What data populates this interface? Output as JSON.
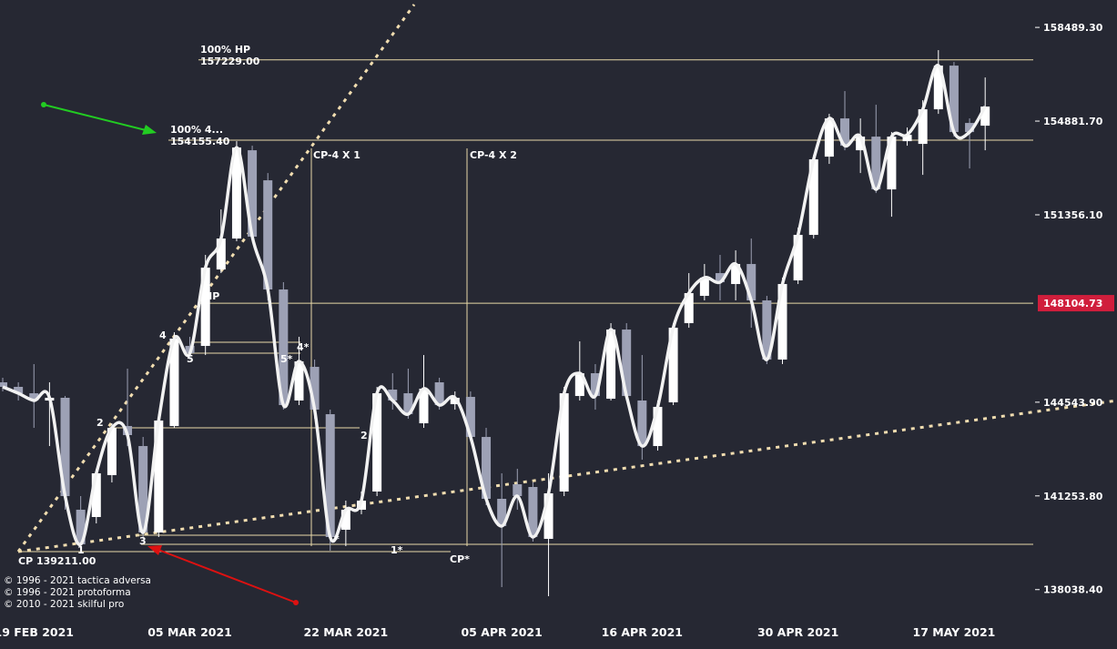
{
  "chart_data": {
    "type": "candlestick",
    "log_scale": true,
    "ylim": [
      136740,
      159560
    ],
    "yticks": [
      {
        "value": 158489.3,
        "label": "158489.30"
      },
      {
        "value": 154881.7,
        "label": "154881.70"
      },
      {
        "value": 151356.1,
        "label": "151356.10"
      },
      {
        "value": 144543.9,
        "label": "144543.90"
      },
      {
        "value": 141253.8,
        "label": "141253.80"
      },
      {
        "value": 138038.4,
        "label": "138038.40"
      }
    ],
    "up_color": "#ffffff",
    "down_color": "#9da1b5",
    "line_color": "#f2f2f2",
    "current_price": 148104.73,
    "current_price_color": "#d01e3c",
    "level_color": "#e8d9a8",
    "levels": [
      {
        "title": "100% HP",
        "value": 157229,
        "label": "157229.00"
      },
      {
        "title": "100%  4...",
        "value": 154155.4,
        "label": "154155.40"
      }
    ],
    "categories": [
      null,
      null,
      "19 FEB 2021",
      null,
      null,
      null,
      null,
      null,
      null,
      null,
      null,
      null,
      "05 MAR 2021",
      null,
      null,
      null,
      null,
      null,
      null,
      null,
      null,
      null,
      "22 MAR 2021",
      null,
      null,
      null,
      null,
      null,
      null,
      null,
      null,
      null,
      "05 APR 2021",
      null,
      null,
      null,
      null,
      null,
      null,
      null,
      null,
      "16 APR 2021",
      null,
      null,
      null,
      null,
      null,
      null,
      null,
      null,
      null,
      "30 APR 2021",
      null,
      null,
      null,
      null,
      null,
      null,
      null,
      null,
      null,
      "17 MAY 2021",
      null,
      null
    ],
    "open": [
      145252,
      145090,
      144862,
      144604,
      144701,
      140775,
      140523,
      141976,
      143700,
      142995,
      139990,
      143700,
      146557,
      146557,
      149336,
      150476,
      153776,
      152645,
      148604,
      144604,
      145805,
      144119,
      140084,
      140775,
      141406,
      144992,
      144862,
      143797,
      145252,
      144474,
      144733,
      143315,
      141153,
      141659,
      141564,
      139771,
      141406,
      144765,
      145577,
      144668,
      147148,
      144604,
      142995,
      144539,
      147379,
      148371,
      149203,
      148803,
      149537,
      148205,
      146066,
      148936,
      150611,
      153535,
      154984,
      153776,
      154292,
      152304,
      154120,
      154017,
      155332,
      157008,
      154811,
      154707
    ],
    "close": [
      145090,
      144862,
      144604,
      144701,
      141248,
      139584,
      142040,
      143636,
      143380,
      139990,
      143894,
      146819,
      146295,
      149403,
      150476,
      153879,
      150544,
      148604,
      144442,
      146001,
      144280,
      139833,
      140775,
      141090,
      144862,
      144604,
      144119,
      145025,
      144442,
      144701,
      143315,
      141153,
      140209,
      141248,
      139833,
      141343,
      144862,
      145577,
      144765,
      147148,
      144765,
      142995,
      144377,
      147214,
      148471,
      149036,
      148869,
      149537,
      148205,
      146066,
      148803,
      150611,
      153433,
      154984,
      153948,
      154292,
      152304,
      154292,
      154361,
      155332,
      157008,
      154465,
      154465,
      155436
    ],
    "high": [
      145415,
      145252,
      145903,
      145252,
      144765,
      141248,
      142198,
      143797,
      145740,
      143315,
      144119,
      147049,
      146885,
      149872,
      151557,
      154120,
      153948,
      152918,
      148869,
      146885,
      146066,
      144280,
      141090,
      141406,
      145090,
      145577,
      145740,
      146229,
      145415,
      144927,
      144927,
      143636,
      142040,
      142198,
      141722,
      142040,
      145090,
      146721,
      145903,
      147379,
      147379,
      146229,
      144604,
      147379,
      149203,
      149537,
      149872,
      150040,
      150476,
      148371,
      149036,
      150880,
      153604,
      155158,
      156028,
      154984,
      155505,
      154465,
      154638,
      155679,
      157606,
      157148,
      154984,
      156552
    ],
    "low": [
      144927,
      144604,
      143636,
      142995,
      140775,
      139365,
      140303,
      141722,
      142995,
      139833,
      139833,
      143636,
      146066,
      146229,
      149203,
      150375,
      150375,
      148205,
      144280,
      144442,
      143958,
      139365,
      139521,
      140618,
      141248,
      144280,
      143958,
      143636,
      144280,
      144280,
      143155,
      140933,
      138124,
      140775,
      139677,
      137815,
      141248,
      144604,
      144280,
      144604,
      144604,
      142517,
      142836,
      144442,
      147214,
      148205,
      148205,
      148205,
      147214,
      145903,
      145903,
      148803,
      150476,
      153261,
      153776,
      152918,
      152168,
      151286,
      153948,
      152850,
      155158,
      154292,
      153090,
      153776
    ],
    "annotations": [
      "CP-4 X 1",
      "CP-4 X 2",
      "CP 139211.00",
      "1",
      "2",
      "3",
      "4",
      "5",
      "5*",
      "4*",
      "2",
      "*",
      "1*",
      "CP*",
      "HP"
    ],
    "copyright": [
      "© 1996 - 2021 tactica adversa",
      "© 1996 - 2021 protoforma",
      "© 2010 - 2021 skilful pro"
    ]
  }
}
